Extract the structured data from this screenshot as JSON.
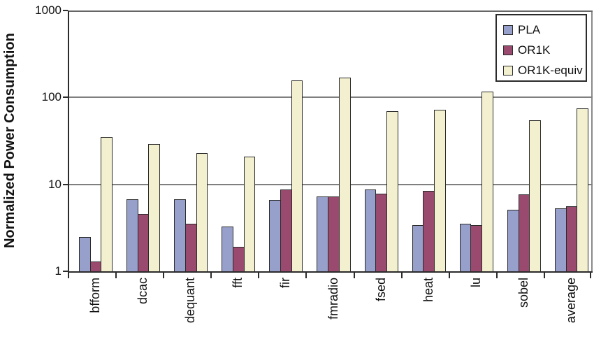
{
  "chart_data": {
    "type": "bar",
    "scale": "log",
    "title": "",
    "xlabel": "",
    "ylabel": "Normalized Power Consumption",
    "ylim": [
      1,
      1000
    ],
    "yticks": [
      "1000",
      "100",
      "10",
      "1"
    ],
    "grid": true,
    "legend_position": "top-right",
    "categories": [
      "bfform",
      "dcac",
      "dequant",
      "fft",
      "fir",
      "fmradio",
      "fsed",
      "heat",
      "lu",
      "sobel",
      "average"
    ],
    "series": [
      {
        "name": "PLA",
        "color": "#97A0CA",
        "values": [
          2.5,
          6.8,
          6.7,
          3.3,
          6.6,
          7.3,
          8.7,
          3.4,
          3.5,
          5.1,
          5.3
        ]
      },
      {
        "name": "OR1K",
        "color": "#9A4A6E",
        "values": [
          1.3,
          4.6,
          3.5,
          1.9,
          8.7,
          7.2,
          7.8,
          8.4,
          3.4,
          7.7,
          5.6
        ]
      },
      {
        "name": "OR1K-equiv",
        "color": "#F2F0CE",
        "values": [
          35,
          29,
          23,
          21,
          158,
          168,
          70,
          72,
          117,
          55,
          75
        ]
      }
    ],
    "style": {
      "grid_color": "#7f7f7f",
      "axis_color": "#2b2b2b",
      "bar_border_color": "#2b2b2b"
    }
  }
}
